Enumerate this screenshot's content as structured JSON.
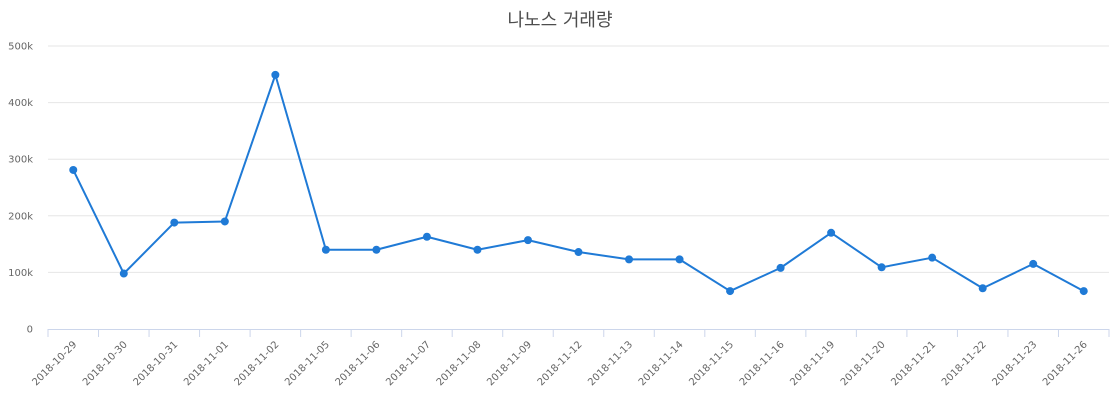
{
  "chart_data": {
    "type": "line",
    "title": "나노스 거래량",
    "xlabel": "",
    "ylabel": "",
    "categories": [
      "2018-10-29",
      "2018-10-30",
      "2018-10-31",
      "2018-11-01",
      "2018-11-02",
      "2018-11-05",
      "2018-11-06",
      "2018-11-07",
      "2018-11-08",
      "2018-11-09",
      "2018-11-12",
      "2018-11-13",
      "2018-11-14",
      "2018-11-15",
      "2018-11-16",
      "2018-11-19",
      "2018-11-20",
      "2018-11-21",
      "2018-11-22",
      "2018-11-23",
      "2018-11-26"
    ],
    "series": [
      {
        "values": [
          281000,
          98000,
          188000,
          190000,
          449000,
          140000,
          140000,
          163000,
          140000,
          157000,
          136000,
          123000,
          123000,
          67000,
          108000,
          170000,
          109000,
          126000,
          72000,
          115000,
          67000
        ]
      }
    ],
    "ylim": [
      0,
      500000
    ],
    "yticks": [
      0,
      100000,
      200000,
      300000,
      400000,
      500000
    ],
    "ytick_labels": [
      "0",
      "100k",
      "200k",
      "300k",
      "400k",
      "500k"
    ],
    "grid": true,
    "legend": "none",
    "line_color": "#1f7ad6"
  }
}
